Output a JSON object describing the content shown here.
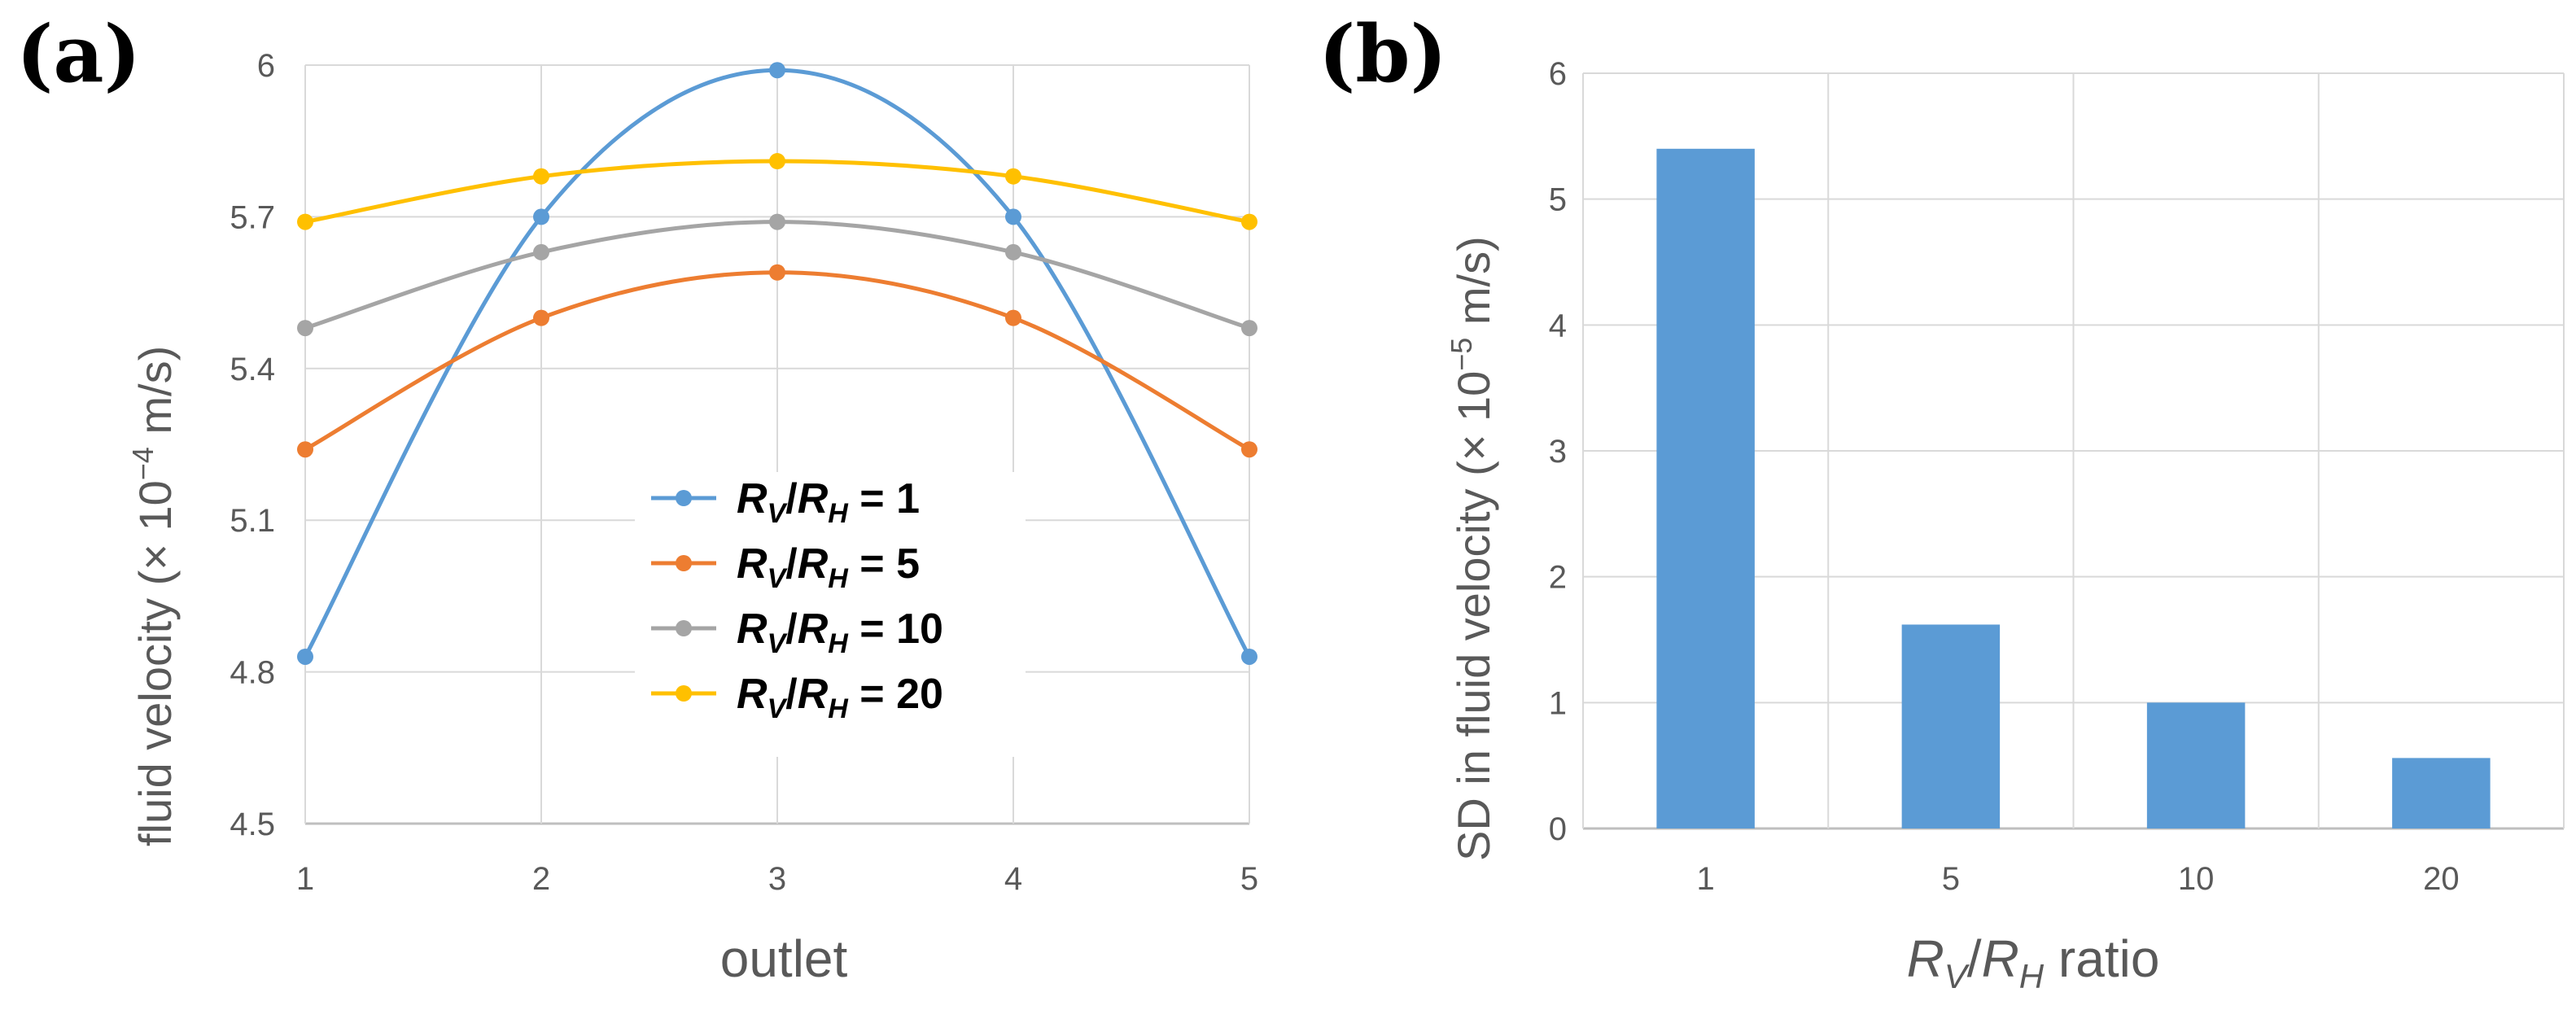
{
  "figure": {
    "panel_a_label": "(a)",
    "panel_b_label": "(b)"
  },
  "chart_data": [
    {
      "type": "line",
      "panel": "(a)",
      "xlabel": "outlet",
      "ylabel": {
        "main": "fluid velocity (× 10",
        "sup": "−4",
        "unit": " m/s)"
      },
      "categories": [
        "1",
        "2",
        "3",
        "4",
        "5"
      ],
      "ylim": [
        4.5,
        6
      ],
      "yticks": [
        "4.5",
        "4.8",
        "5.1",
        "5.4",
        "5.7",
        "6"
      ],
      "grid": true,
      "smooth": true,
      "legend_position": "center",
      "series": [
        {
          "name": {
            "r": "R",
            "v": "V",
            "slash": "/",
            "h": "H",
            "eq": " = 1"
          },
          "color": "#5b9bd5",
          "values": [
            4.83,
            5.7,
            5.99,
            5.7,
            4.83
          ]
        },
        {
          "name": {
            "r": "R",
            "v": "V",
            "slash": "/",
            "h": "H",
            "eq": " = 5"
          },
          "color": "#ed7d31",
          "values": [
            5.24,
            5.5,
            5.59,
            5.5,
            5.24
          ]
        },
        {
          "name": {
            "r": "R",
            "v": "V",
            "slash": "/",
            "h": "H",
            "eq": " = 10"
          },
          "color": "#a5a5a5",
          "values": [
            5.48,
            5.63,
            5.69,
            5.63,
            5.48
          ]
        },
        {
          "name": {
            "r": "R",
            "v": "V",
            "slash": "/",
            "h": "H",
            "eq": " = 20"
          },
          "color": "#ffc000",
          "values": [
            5.69,
            5.78,
            5.81,
            5.78,
            5.69
          ]
        }
      ]
    },
    {
      "type": "bar",
      "panel": "(b)",
      "xlabel": {
        "r": "R",
        "v": "V",
        "slash": "/",
        "h": "H",
        "rest": " ratio"
      },
      "ylabel": {
        "main": "SD in fluid velocity (× 10",
        "sup": "−5",
        "unit": " m/s)"
      },
      "categories": [
        "1",
        "5",
        "10",
        "20"
      ],
      "values": [
        5.4,
        1.62,
        1.0,
        0.56
      ],
      "color": "#5b9bd5",
      "ylim": [
        0,
        6
      ],
      "yticks": [
        "0",
        "1",
        "2",
        "3",
        "4",
        "5",
        "6"
      ],
      "grid": true
    }
  ]
}
